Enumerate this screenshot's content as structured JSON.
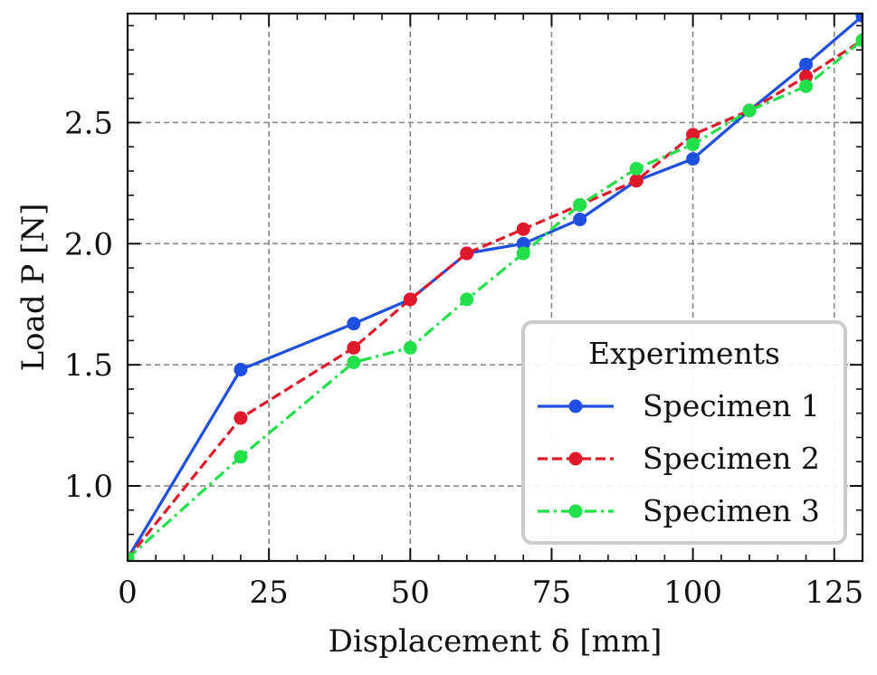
{
  "chart_data": {
    "type": "line",
    "xlabel": "Displacement δ [mm]",
    "ylabel": "Load P [N]",
    "xlim": [
      0,
      130
    ],
    "ylim": [
      0.69,
      2.95
    ],
    "xticks": [
      0,
      25,
      50,
      75,
      100,
      125
    ],
    "yticks": [
      1.0,
      1.5,
      2.0,
      2.5
    ],
    "xtick_labels": [
      "0",
      "25",
      "50",
      "75",
      "100",
      "125"
    ],
    "ytick_labels": [
      "1.0",
      "1.5",
      "2.0",
      "2.5"
    ],
    "grid": true,
    "legend": {
      "title": "Experiments",
      "placement": "lower-right"
    },
    "series": [
      {
        "name": "Specimen 1",
        "color": "#1f4fe0",
        "linestyle": "solid",
        "x": [
          0,
          20,
          40,
          50,
          60,
          70,
          80,
          90,
          100,
          110,
          120,
          130
        ],
        "y": [
          0.7,
          1.48,
          1.67,
          1.77,
          1.96,
          2.0,
          2.1,
          2.26,
          2.35,
          2.55,
          2.74,
          2.94
        ]
      },
      {
        "name": "Specimen 2",
        "color": "#e0192a",
        "linestyle": "dashed",
        "x": [
          0,
          20,
          40,
          50,
          60,
          70,
          80,
          90,
          100,
          110,
          120,
          130
        ],
        "y": [
          0.7,
          1.28,
          1.57,
          1.77,
          1.96,
          2.06,
          2.16,
          2.26,
          2.45,
          2.55,
          2.69,
          2.84
        ]
      },
      {
        "name": "Specimen 3",
        "color": "#22e04a",
        "linestyle": "dashdot",
        "x": [
          0,
          20,
          40,
          50,
          60,
          70,
          80,
          90,
          100,
          110,
          120,
          130
        ],
        "y": [
          0.7,
          1.12,
          1.51,
          1.57,
          1.77,
          1.96,
          2.16,
          2.31,
          2.41,
          2.55,
          2.65,
          2.84
        ]
      }
    ]
  }
}
